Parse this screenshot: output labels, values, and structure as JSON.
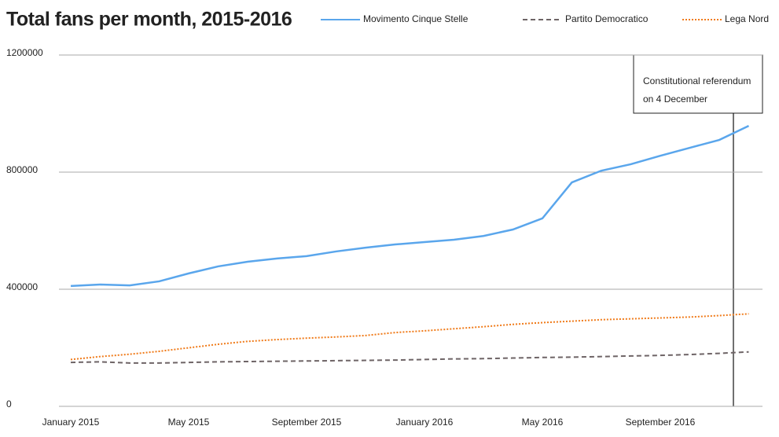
{
  "chart_data": {
    "type": "line",
    "title": "Total fans per month, 2015-2016",
    "categories": [
      "January 2015",
      null,
      null,
      null,
      "May 2015",
      null,
      null,
      null,
      "September 2015",
      null,
      null,
      null,
      "January 2016",
      null,
      null,
      null,
      "May 2016",
      null,
      null,
      null,
      "September 2016",
      null,
      null,
      null
    ],
    "series": [
      {
        "name": "Movimento Cinque Stelle",
        "color": "#5aa6ec",
        "style": "solid",
        "values": [
          411000,
          416000,
          413000,
          427000,
          454000,
          478000,
          494000,
          505000,
          513000,
          529000,
          542000,
          553000,
          561000,
          569000,
          582000,
          604000,
          642000,
          765000,
          805000,
          827000,
          856000,
          883000,
          910000,
          958000
        ]
      },
      {
        "name": "Partito Democratico",
        "color": "#6e6466",
        "style": "dashed",
        "values": [
          150000,
          152000,
          148000,
          148000,
          150000,
          152000,
          153000,
          154000,
          155000,
          156000,
          157000,
          158000,
          160000,
          162000,
          163000,
          165000,
          167000,
          168000,
          170000,
          172000,
          174000,
          177000,
          181000,
          186000
        ]
      },
      {
        "name": "Lega Nord",
        "color": "#f07b1a",
        "style": "dotted",
        "values": [
          160000,
          170000,
          178000,
          188000,
          200000,
          212000,
          222000,
          228000,
          233000,
          237000,
          242000,
          252000,
          258000,
          265000,
          272000,
          280000,
          286000,
          291000,
          296000,
          299000,
          302000,
          305000,
          310000,
          316000
        ]
      }
    ],
    "ylim": [
      0,
      1200000
    ],
    "yticks": [
      0,
      400000,
      800000,
      1200000
    ],
    "grid": true,
    "legend": "top",
    "annotation": {
      "lines": [
        "Constitutional referendum",
        "on 4 December"
      ]
    }
  }
}
